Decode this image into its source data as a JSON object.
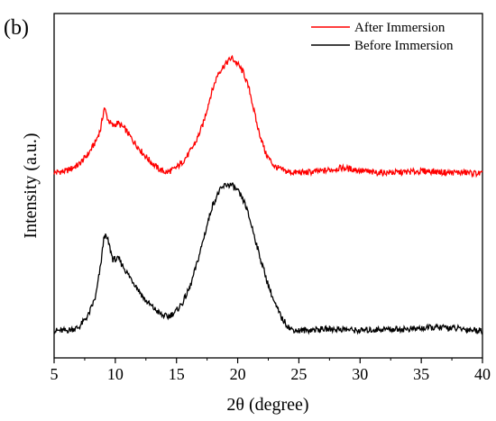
{
  "panel_label": "(b)",
  "colors": {
    "after": "#ff0000",
    "before": "#000000",
    "axis": "#000000"
  },
  "chart_data": {
    "type": "line",
    "title": "",
    "xlabel": "2θ (degree)",
    "ylabel": "Intensity (a.u.)",
    "xlim": [
      5,
      40
    ],
    "ylim": [
      0,
      1
    ],
    "x_ticks": [
      "5",
      "10",
      "15",
      "20",
      "25",
      "30",
      "35",
      "40"
    ],
    "y_ticks_labeled": false,
    "legend_position": "top-right",
    "series": [
      {
        "name": "After Immersion",
        "color": "#ff0000",
        "points": [
          [
            5.0,
            0.56
          ],
          [
            6.0,
            0.565
          ],
          [
            7.0,
            0.585
          ],
          [
            7.8,
            0.62
          ],
          [
            8.4,
            0.66
          ],
          [
            8.8,
            0.7
          ],
          [
            9.1,
            0.77
          ],
          [
            9.4,
            0.73
          ],
          [
            9.8,
            0.71
          ],
          [
            10.2,
            0.72
          ],
          [
            10.8,
            0.7
          ],
          [
            11.5,
            0.66
          ],
          [
            12.3,
            0.62
          ],
          [
            13.0,
            0.59
          ],
          [
            13.6,
            0.57
          ],
          [
            14.2,
            0.56
          ],
          [
            14.8,
            0.57
          ],
          [
            15.4,
            0.59
          ],
          [
            16.0,
            0.62
          ],
          [
            16.6,
            0.66
          ],
          [
            17.2,
            0.72
          ],
          [
            17.8,
            0.81
          ],
          [
            18.4,
            0.88
          ],
          [
            19.0,
            0.91
          ],
          [
            19.5,
            0.93
          ],
          [
            20.0,
            0.91
          ],
          [
            20.5,
            0.88
          ],
          [
            21.0,
            0.82
          ],
          [
            21.6,
            0.71
          ],
          [
            22.3,
            0.62
          ],
          [
            23.0,
            0.58
          ],
          [
            23.8,
            0.565
          ],
          [
            24.5,
            0.56
          ],
          [
            25.5,
            0.56
          ],
          [
            27.0,
            0.565
          ],
          [
            28.5,
            0.575
          ],
          [
            29.5,
            0.57
          ],
          [
            31.0,
            0.56
          ],
          [
            33.0,
            0.56
          ],
          [
            35.5,
            0.565
          ],
          [
            37.0,
            0.56
          ],
          [
            38.5,
            0.56
          ],
          [
            40.0,
            0.556
          ]
        ]
      },
      {
        "name": "Before Immersion",
        "color": "#000000",
        "points": [
          [
            5.0,
            0.05
          ],
          [
            6.0,
            0.05
          ],
          [
            7.0,
            0.06
          ],
          [
            7.8,
            0.1
          ],
          [
            8.4,
            0.16
          ],
          [
            8.8,
            0.26
          ],
          [
            9.1,
            0.36
          ],
          [
            9.4,
            0.34
          ],
          [
            9.8,
            0.28
          ],
          [
            10.3,
            0.28
          ],
          [
            10.9,
            0.24
          ],
          [
            11.6,
            0.2
          ],
          [
            12.4,
            0.15
          ],
          [
            13.2,
            0.12
          ],
          [
            13.8,
            0.1
          ],
          [
            14.3,
            0.095
          ],
          [
            14.9,
            0.11
          ],
          [
            15.5,
            0.14
          ],
          [
            16.1,
            0.19
          ],
          [
            16.7,
            0.27
          ],
          [
            17.3,
            0.36
          ],
          [
            17.9,
            0.45
          ],
          [
            18.5,
            0.5
          ],
          [
            19.0,
            0.52
          ],
          [
            19.5,
            0.52
          ],
          [
            20.0,
            0.5
          ],
          [
            20.6,
            0.46
          ],
          [
            21.2,
            0.38
          ],
          [
            21.8,
            0.29
          ],
          [
            22.4,
            0.21
          ],
          [
            23.0,
            0.14
          ],
          [
            23.6,
            0.09
          ],
          [
            24.3,
            0.055
          ],
          [
            25.0,
            0.05
          ],
          [
            27.0,
            0.055
          ],
          [
            28.5,
            0.055
          ],
          [
            30.0,
            0.05
          ],
          [
            32.0,
            0.055
          ],
          [
            34.0,
            0.055
          ],
          [
            36.0,
            0.06
          ],
          [
            37.0,
            0.06
          ],
          [
            38.5,
            0.055
          ],
          [
            40.0,
            0.05
          ]
        ]
      }
    ]
  }
}
